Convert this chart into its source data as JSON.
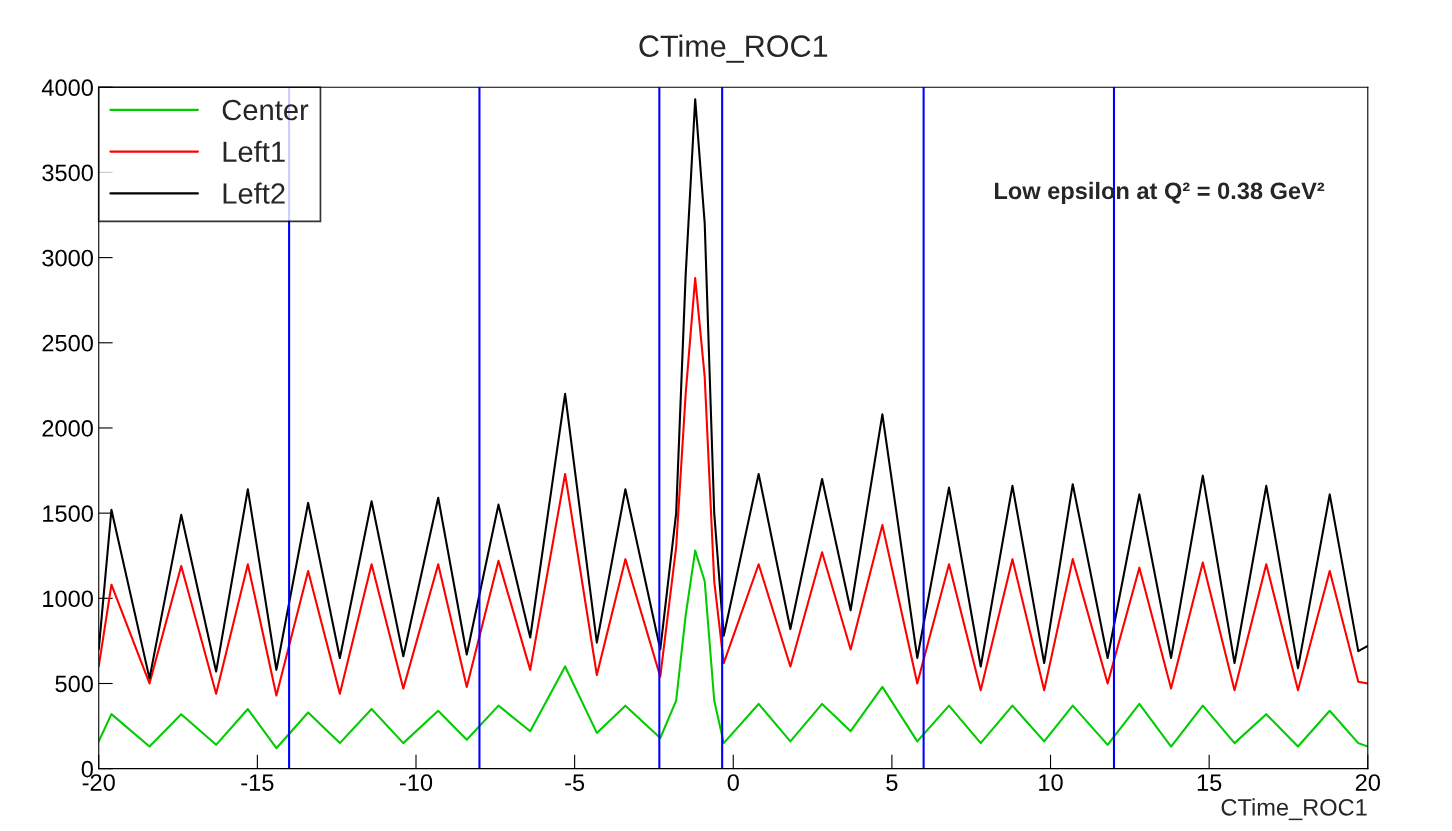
{
  "chart_data": {
    "type": "line",
    "title": "CTime_ROC1",
    "xlabel": "CTime_ROC1",
    "x": [
      -20,
      -19.6,
      -18.4,
      -17.4,
      -16.3,
      -15.3,
      -14.4,
      -13.4,
      -12.4,
      -11.4,
      -10.4,
      -9.3,
      -8.4,
      -7.4,
      -6.4,
      -5.3,
      -4.3,
      -3.4,
      -2.3,
      -1.8,
      -1.5,
      -1.2,
      -0.9,
      -0.6,
      -0.3,
      0.8,
      1.8,
      2.8,
      3.7,
      4.7,
      5.8,
      6.8,
      7.8,
      8.8,
      9.8,
      10.7,
      11.8,
      12.8,
      13.8,
      14.8,
      15.8,
      16.8,
      17.8,
      18.8,
      19.7,
      20
    ],
    "series": [
      {
        "name": "Center",
        "color": "#00cc00",
        "values": [
          160,
          320,
          130,
          320,
          140,
          350,
          120,
          330,
          150,
          350,
          150,
          340,
          170,
          370,
          220,
          600,
          210,
          370,
          180,
          400,
          900,
          1280,
          1100,
          400,
          150,
          380,
          160,
          380,
          220,
          480,
          160,
          370,
          150,
          370,
          160,
          370,
          140,
          380,
          130,
          370,
          150,
          320,
          130,
          340,
          150,
          130
        ]
      },
      {
        "name": "Left1",
        "color": "#ff0000",
        "values": [
          600,
          1080,
          500,
          1190,
          440,
          1200,
          430,
          1160,
          440,
          1200,
          470,
          1200,
          480,
          1220,
          580,
          1730,
          550,
          1230,
          540,
          1300,
          2200,
          2880,
          2300,
          1100,
          620,
          1200,
          600,
          1270,
          700,
          1430,
          500,
          1200,
          460,
          1230,
          460,
          1230,
          500,
          1180,
          470,
          1210,
          460,
          1200,
          460,
          1160,
          510,
          500
        ]
      },
      {
        "name": "Left2",
        "color": "#000000",
        "values": [
          700,
          1520,
          530,
          1490,
          570,
          1640,
          580,
          1560,
          650,
          1570,
          660,
          1590,
          670,
          1550,
          770,
          2200,
          740,
          1640,
          700,
          1500,
          2900,
          3930,
          3200,
          1500,
          780,
          1730,
          820,
          1700,
          930,
          2080,
          650,
          1650,
          600,
          1660,
          620,
          1670,
          650,
          1610,
          650,
          1720,
          620,
          1660,
          590,
          1610,
          690,
          720
        ]
      }
    ],
    "xlim": [
      -20,
      20
    ],
    "xticks": [
      -20,
      -15,
      -10,
      -5,
      0,
      5,
      10,
      15,
      20
    ],
    "ylim": [
      0,
      4000
    ],
    "yticks": [
      0,
      500,
      1000,
      1500,
      2000,
      2500,
      3000,
      3500,
      4000
    ],
    "ref_lines": [
      {
        "axis": "x",
        "value": -14,
        "color": "#0000ff"
      },
      {
        "axis": "x",
        "value": -8,
        "color": "#0000ff"
      },
      {
        "axis": "x",
        "value": -2.33,
        "color": "#0000ff"
      },
      {
        "axis": "x",
        "value": -0.35,
        "color": "#0000ff"
      },
      {
        "axis": "x",
        "value": 6,
        "color": "#0000ff"
      },
      {
        "axis": "x",
        "value": 12,
        "color": "#0000ff"
      }
    ],
    "annotations": [
      "Low epsilon at Q² = 0.38 GeV²"
    ],
    "legend": "top left",
    "grid": false
  }
}
